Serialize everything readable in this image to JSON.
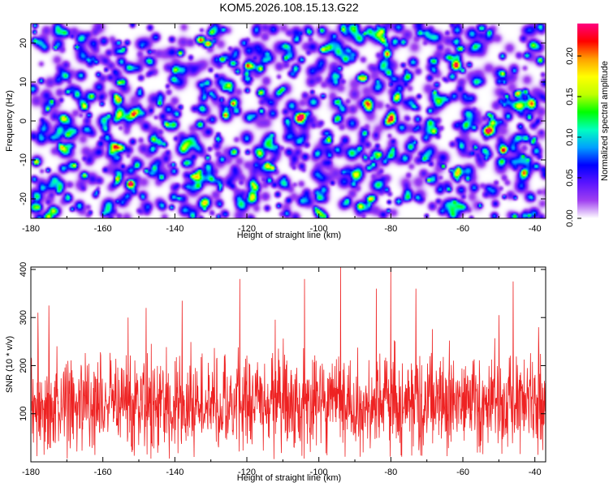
{
  "title": "KOM5.2026.108.15.13.G22",
  "chart_data": [
    {
      "type": "heatmap",
      "xlabel": "Height of straight line (km)",
      "ylabel": "Frequency (Hz)",
      "xlim": [
        -180,
        -37
      ],
      "ylim": [
        -25,
        25
      ],
      "xticks": [
        -180,
        -160,
        -140,
        -120,
        -100,
        -80,
        -60,
        -40
      ],
      "yticks": [
        -20,
        -10,
        0,
        10,
        20
      ],
      "colorbar": {
        "label": "Normalized spectral amplitude",
        "range": [
          0,
          0.24
        ],
        "ticks": [
          "0.00",
          "0.05",
          "0.10",
          "0.15",
          "0.20"
        ],
        "colormap": [
          "#ffffff",
          "#a040f0",
          "#5a14ff",
          "#0000ff",
          "#00a0ff",
          "#00ffc0",
          "#00ff00",
          "#c0ff00",
          "#ffff00",
          "#ffa000",
          "#ff0000",
          "#ff0080"
        ]
      },
      "hotspots": [
        {
          "x": -133,
          "y": 21,
          "value": 0.22
        },
        {
          "x": -131,
          "y": 20,
          "value": 0.2
        },
        {
          "x": -127,
          "y": 16,
          "value": 0.15
        },
        {
          "x": -124,
          "y": 15,
          "value": 0.13
        },
        {
          "x": -120,
          "y": 11,
          "value": 0.11
        },
        {
          "x": -84,
          "y": -9,
          "value": 0.14
        },
        {
          "x": -55,
          "y": 24,
          "value": 0.12
        },
        {
          "x": -98,
          "y": -3,
          "value": 0.09
        }
      ]
    },
    {
      "type": "line",
      "xlabel": "Height of straight line (km)",
      "ylabel": "SNR (10 * v/v)",
      "xlim": [
        -180,
        -37
      ],
      "ylim": [
        0,
        405
      ],
      "xticks": [
        -180,
        -160,
        -140,
        -120,
        -100,
        -80,
        -60,
        -40
      ],
      "yticks": [
        100,
        200,
        300,
        400
      ],
      "color": "#ee2222",
      "baseline_mean": 120,
      "spread": 80,
      "peaks": [
        {
          "x": -178,
          "y": 310
        },
        {
          "x": -175,
          "y": 325
        },
        {
          "x": -153,
          "y": 300
        },
        {
          "x": -148,
          "y": 320
        },
        {
          "x": -138,
          "y": 335
        },
        {
          "x": -122,
          "y": 380
        },
        {
          "x": -104,
          "y": 380
        },
        {
          "x": -94,
          "y": 405
        },
        {
          "x": -84,
          "y": 360
        },
        {
          "x": -80,
          "y": 405
        },
        {
          "x": -73,
          "y": 360
        },
        {
          "x": -50,
          "y": 305
        },
        {
          "x": -46,
          "y": 375
        },
        {
          "x": -39,
          "y": 280
        }
      ]
    }
  ]
}
